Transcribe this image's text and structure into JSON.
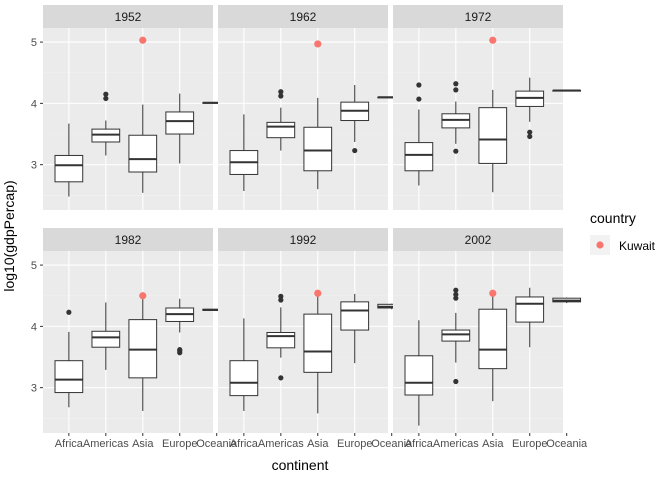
{
  "chart_data": {
    "type": "boxplot",
    "x_label": "continent",
    "y_label": "log10(gdpPercap)",
    "categories": [
      "Africa",
      "Americas",
      "Asia",
      "Europe",
      "Oceania"
    ],
    "y_ticks": [
      3,
      4,
      5
    ],
    "y_range": [
      2.26,
      5.23
    ],
    "grid": true,
    "facet_rows": 2,
    "facet_cols": 3,
    "colors": {
      "panel_bg": "#EBEBEB",
      "strip_bg": "#D9D9D9",
      "grid_major": "#FFFFFF",
      "grid_minor": "#F2F2F2",
      "box_line": "#333333",
      "highlight": "#F8766D"
    },
    "legend": {
      "title": "country",
      "placement": "right",
      "entries": [
        {
          "label": "Kuwait",
          "color": "#F8766D"
        }
      ]
    },
    "panels": [
      {
        "year": "1952",
        "boxes": [
          {
            "category": "Africa",
            "min": 2.48,
            "q1": 2.72,
            "median": 2.99,
            "q3": 3.15,
            "max": 3.67,
            "outliers": []
          },
          {
            "category": "Americas",
            "min": 3.15,
            "q1": 3.37,
            "median": 3.49,
            "q3": 3.58,
            "max": 3.72,
            "outliers": [
              4.08,
              4.15
            ]
          },
          {
            "category": "Asia",
            "min": 2.54,
            "q1": 2.88,
            "median": 3.09,
            "q3": 3.48,
            "max": 3.98,
            "outliers": []
          },
          {
            "category": "Europe",
            "min": 3.02,
            "q1": 3.5,
            "median": 3.71,
            "q3": 3.86,
            "max": 4.16,
            "outliers": []
          },
          {
            "category": "Oceania",
            "min": 4.0,
            "q1": 4.0,
            "median": 4.01,
            "q3": 4.01,
            "max": 4.02,
            "outliers": []
          }
        ],
        "highlight": {
          "country": "Kuwait",
          "category": "Asia",
          "value": 5.03
        }
      },
      {
        "year": "1962",
        "boxes": [
          {
            "category": "Africa",
            "min": 2.57,
            "q1": 2.84,
            "median": 3.04,
            "q3": 3.23,
            "max": 3.82,
            "outliers": []
          },
          {
            "category": "Americas",
            "min": 3.23,
            "q1": 3.44,
            "median": 3.62,
            "q3": 3.69,
            "max": 3.93,
            "outliers": [
              4.12,
              4.19
            ]
          },
          {
            "category": "Asia",
            "min": 2.6,
            "q1": 2.9,
            "median": 3.23,
            "q3": 3.61,
            "max": 4.09,
            "outliers": []
          },
          {
            "category": "Europe",
            "min": 3.37,
            "q1": 3.72,
            "median": 3.88,
            "q3": 4.02,
            "max": 4.3,
            "outliers": [
              3.23
            ]
          },
          {
            "category": "Oceania",
            "min": 4.08,
            "q1": 4.09,
            "median": 4.1,
            "q3": 4.1,
            "max": 4.11,
            "outliers": []
          }
        ],
        "highlight": {
          "country": "Kuwait",
          "category": "Asia",
          "value": 4.97
        }
      },
      {
        "year": "1972",
        "boxes": [
          {
            "category": "Africa",
            "min": 2.66,
            "q1": 2.9,
            "median": 3.16,
            "q3": 3.36,
            "max": 3.9,
            "outliers": [
              4.3,
              4.07
            ]
          },
          {
            "category": "Americas",
            "min": 3.34,
            "q1": 3.6,
            "median": 3.73,
            "q3": 3.83,
            "max": 4.03,
            "outliers": [
              3.22,
              4.22,
              4.32
            ]
          },
          {
            "category": "Asia",
            "min": 2.55,
            "q1": 3.02,
            "median": 3.41,
            "q3": 3.93,
            "max": 4.22,
            "outliers": []
          },
          {
            "category": "Europe",
            "min": 3.7,
            "q1": 3.95,
            "median": 4.09,
            "q3": 4.2,
            "max": 4.42,
            "outliers": [
              3.46,
              3.53
            ]
          },
          {
            "category": "Oceania",
            "min": 4.2,
            "q1": 4.2,
            "median": 4.21,
            "q3": 4.21,
            "max": 4.22,
            "outliers": []
          }
        ],
        "highlight": {
          "country": "Kuwait",
          "category": "Asia",
          "value": 5.03
        }
      },
      {
        "year": "1982",
        "boxes": [
          {
            "category": "Africa",
            "min": 2.68,
            "q1": 2.92,
            "median": 3.13,
            "q3": 3.44,
            "max": 3.91,
            "outliers": [
              4.23
            ]
          },
          {
            "category": "Americas",
            "min": 3.29,
            "q1": 3.66,
            "median": 3.82,
            "q3": 3.92,
            "max": 4.39,
            "outliers": []
          },
          {
            "category": "Asia",
            "min": 2.62,
            "q1": 3.16,
            "median": 3.62,
            "q3": 4.11,
            "max": 4.48,
            "outliers": []
          },
          {
            "category": "Europe",
            "min": 3.9,
            "q1": 4.08,
            "median": 4.2,
            "q3": 4.3,
            "max": 4.45,
            "outliers": [
              3.57,
              3.6,
              3.62
            ]
          },
          {
            "category": "Oceania",
            "min": 4.25,
            "q1": 4.26,
            "median": 4.27,
            "q3": 4.28,
            "max": 4.28,
            "outliers": []
          }
        ],
        "highlight": {
          "country": "Kuwait",
          "category": "Asia",
          "value": 4.5
        }
      },
      {
        "year": "1992",
        "boxes": [
          {
            "category": "Africa",
            "min": 2.62,
            "q1": 2.87,
            "median": 3.08,
            "q3": 3.44,
            "max": 4.13,
            "outliers": []
          },
          {
            "category": "Americas",
            "min": 3.49,
            "q1": 3.65,
            "median": 3.84,
            "q3": 3.9,
            "max": 4.31,
            "outliers": [
              3.16,
              4.43,
              4.49
            ]
          },
          {
            "category": "Asia",
            "min": 2.58,
            "q1": 3.25,
            "median": 3.59,
            "q3": 4.2,
            "max": 4.56,
            "outliers": []
          },
          {
            "category": "Europe",
            "min": 3.4,
            "q1": 3.94,
            "median": 4.26,
            "q3": 4.4,
            "max": 4.53,
            "outliers": []
          },
          {
            "category": "Oceania",
            "min": 4.28,
            "q1": 4.3,
            "median": 4.32,
            "q3": 4.36,
            "max": 4.37,
            "outliers": []
          }
        ],
        "highlight": {
          "country": "Kuwait",
          "category": "Asia",
          "value": 4.54
        }
      },
      {
        "year": "2002",
        "boxes": [
          {
            "category": "Africa",
            "min": 2.38,
            "q1": 2.88,
            "median": 3.08,
            "q3": 3.52,
            "max": 4.1,
            "outliers": []
          },
          {
            "category": "Americas",
            "min": 3.41,
            "q1": 3.76,
            "median": 3.87,
            "q3": 3.94,
            "max": 4.22,
            "outliers": [
              3.1,
              4.46,
              4.52,
              4.59
            ]
          },
          {
            "category": "Asia",
            "min": 2.78,
            "q1": 3.31,
            "median": 3.62,
            "q3": 4.28,
            "max": 4.56,
            "outliers": []
          },
          {
            "category": "Europe",
            "min": 3.66,
            "q1": 4.07,
            "median": 4.37,
            "q3": 4.48,
            "max": 4.63,
            "outliers": []
          },
          {
            "category": "Oceania",
            "min": 4.38,
            "q1": 4.4,
            "median": 4.42,
            "q3": 4.46,
            "max": 4.47,
            "outliers": []
          }
        ],
        "highlight": {
          "country": "Kuwait",
          "category": "Asia",
          "value": 4.54
        }
      }
    ]
  }
}
